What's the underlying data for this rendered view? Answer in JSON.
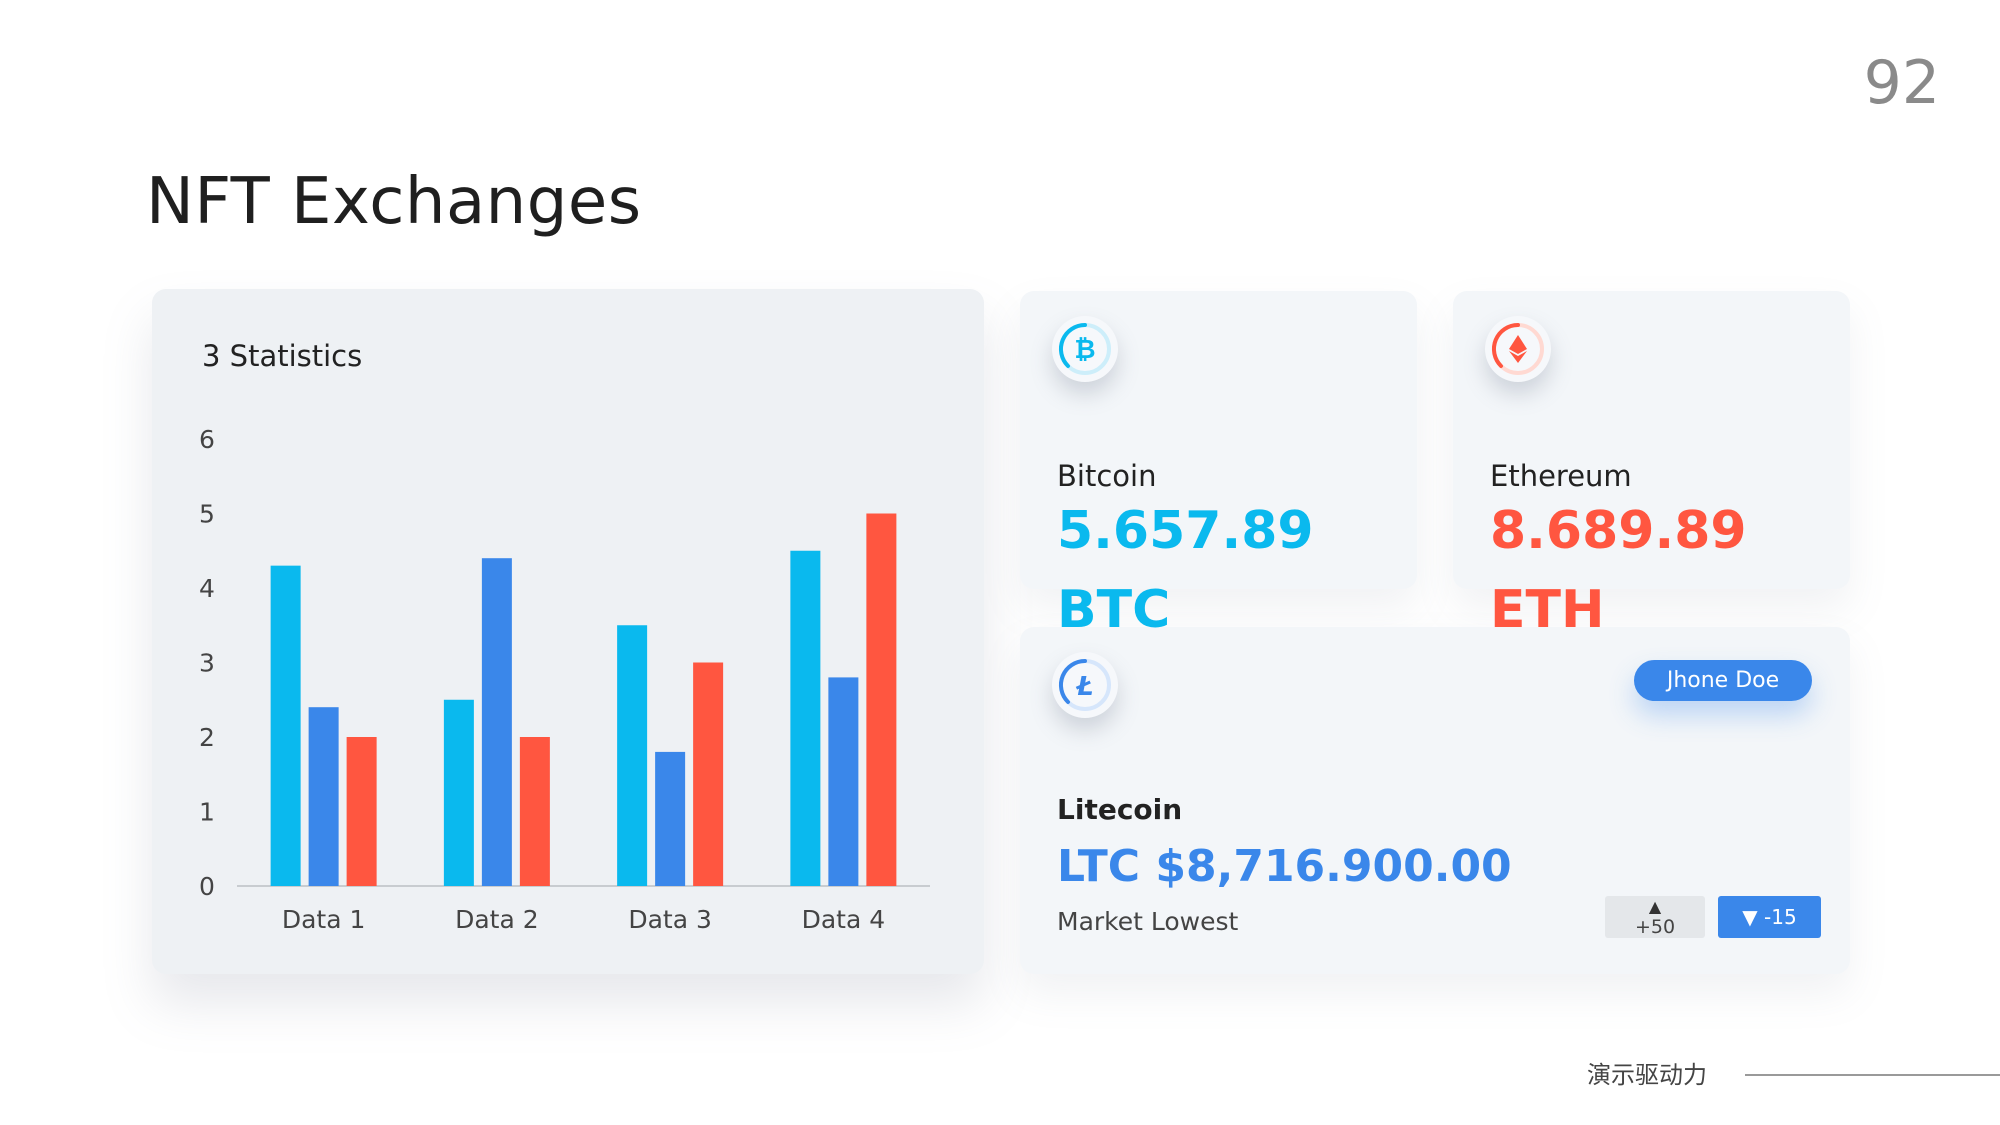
{
  "page": {
    "number": "92",
    "title": "NFT Exchanges"
  },
  "colors": {
    "cyan": "#0ab9ee",
    "blue": "#3a87ea",
    "red": "#ff5640"
  },
  "chart_data": {
    "type": "bar",
    "title": "3 Statistics",
    "categories": [
      "Data 1",
      "Data 2",
      "Data 3",
      "Data 4"
    ],
    "series": [
      {
        "values": [
          4.3,
          2.5,
          3.5,
          4.5
        ],
        "color": "#0ab9ee"
      },
      {
        "values": [
          2.4,
          4.4,
          1.8,
          2.8
        ],
        "color": "#3a87ea"
      },
      {
        "values": [
          2.0,
          2.0,
          3.0,
          5.0
        ],
        "color": "#ff5640"
      }
    ],
    "yticks": [
      "0",
      "1",
      "2",
      "3",
      "4",
      "5",
      "6"
    ],
    "ylim": [
      0,
      6
    ],
    "xlabel": "",
    "ylabel": "",
    "grid": false,
    "legend": "none"
  },
  "cards": {
    "btc": {
      "icon": "bitcoin-icon",
      "name": "Bitcoin",
      "value": "5.657.89",
      "symbol": "BTC"
    },
    "eth": {
      "icon": "ethereum-icon",
      "name": "Ethereum",
      "value": "8.689.89",
      "symbol": "ETH"
    },
    "ltc": {
      "icon": "litecoin-icon",
      "name": "Litecoin",
      "value": "LTC $8,716.900.00",
      "sub": "Market Lowest",
      "user": "Jhone Doe",
      "change_up": "+50",
      "change_down": "-15"
    }
  },
  "footer": {
    "brand": "演示驱动力"
  }
}
